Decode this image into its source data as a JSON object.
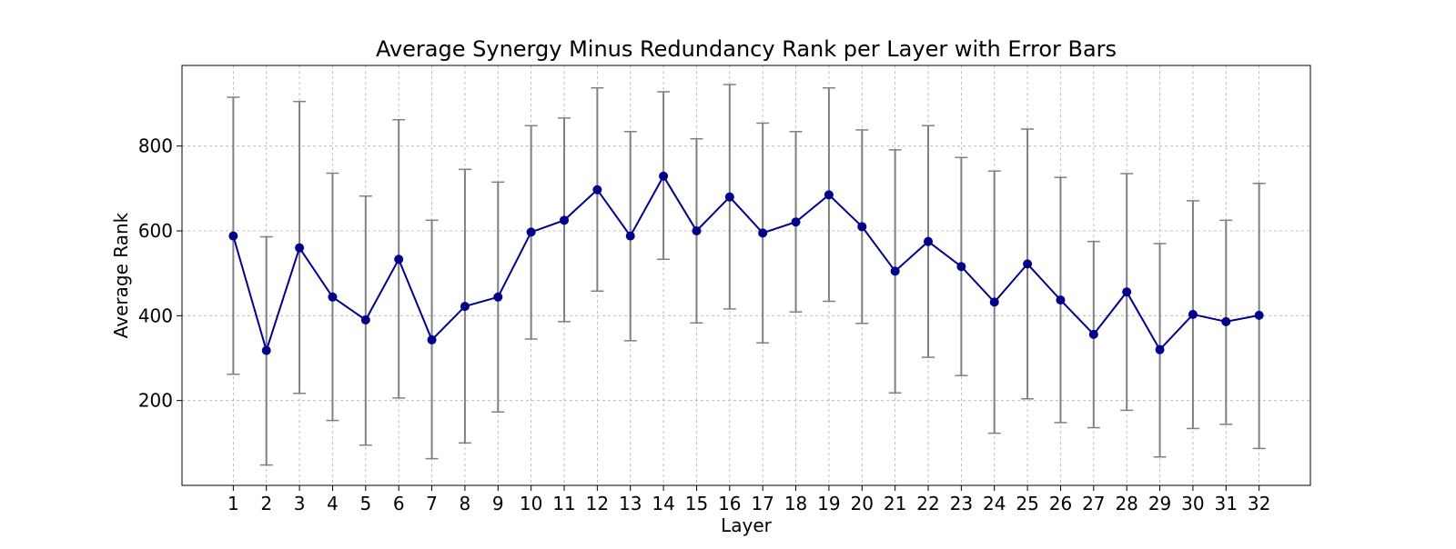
{
  "chart_data": {
    "type": "line",
    "title": "Average Synergy Minus Redundancy Rank per Layer with Error Bars",
    "xlabel": "Layer",
    "ylabel": "Average Rank",
    "x": [
      1,
      2,
      3,
      4,
      5,
      6,
      7,
      8,
      9,
      10,
      11,
      12,
      13,
      14,
      15,
      16,
      17,
      18,
      19,
      20,
      21,
      22,
      23,
      24,
      25,
      26,
      27,
      28,
      29,
      30,
      31,
      32
    ],
    "y": [
      588,
      318,
      560,
      444,
      390,
      533,
      343,
      422,
      444,
      597,
      625,
      697,
      588,
      729,
      600,
      680,
      595,
      621,
      685,
      610,
      505,
      575,
      516,
      432,
      522,
      437,
      356,
      456,
      320,
      403,
      386,
      401
    ],
    "error_low": [
      262,
      48,
      217,
      153,
      95,
      206,
      63,
      100,
      173,
      345,
      386,
      458,
      341,
      533,
      383,
      416,
      336,
      409,
      434,
      382,
      218,
      302,
      259,
      123,
      204,
      148,
      136,
      177,
      67,
      134,
      144,
      87
    ],
    "error_high": [
      915,
      586,
      905,
      736,
      682,
      862,
      625,
      745,
      715,
      848,
      866,
      937,
      834,
      928,
      817,
      945,
      854,
      834,
      937,
      838,
      791,
      848,
      773,
      741,
      840,
      726,
      575,
      735,
      570,
      671,
      625,
      712
    ],
    "xlim": [
      -0.55,
      33.55
    ],
    "ylim": [
      0,
      990
    ],
    "yticks": [
      200,
      400,
      600,
      800
    ],
    "grid": true,
    "colors": {
      "line": "#00008b",
      "marker": "#00008b",
      "error_bar": "#808080",
      "grid": "#b0b0b0"
    }
  }
}
